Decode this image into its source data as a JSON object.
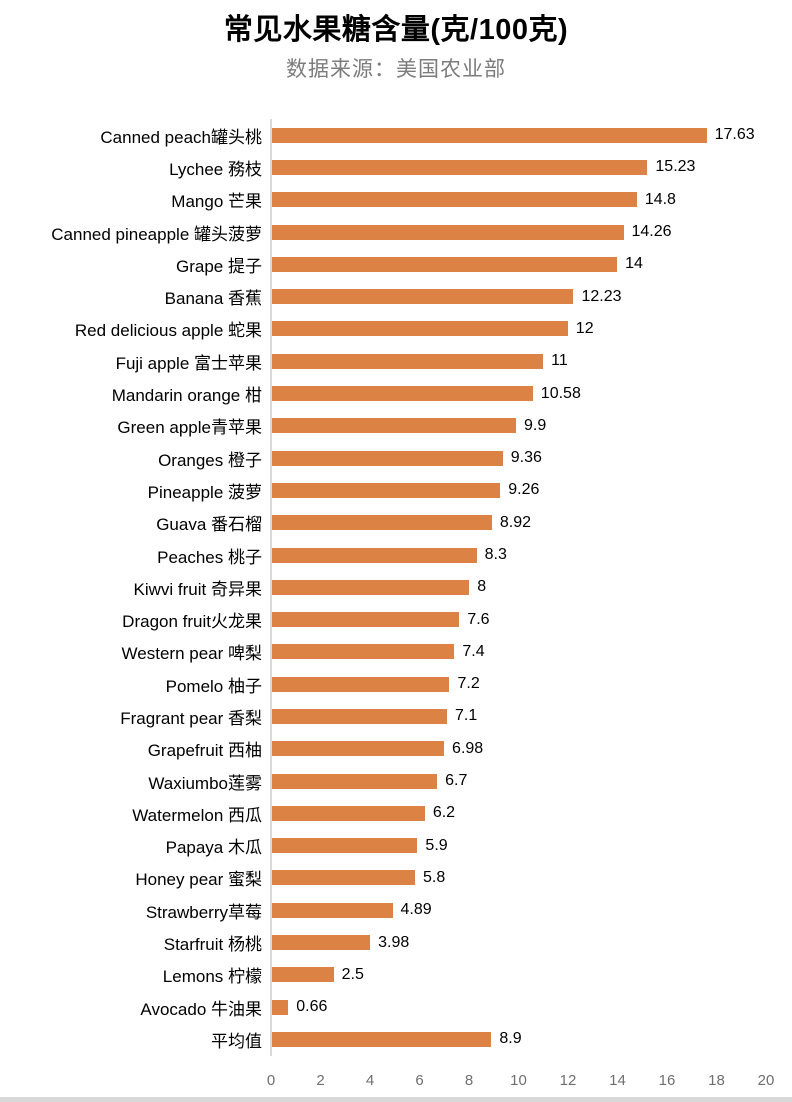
{
  "header": {
    "title": "常见水果糖含量(克/100克)",
    "subtitle": "数据来源：美国农业部"
  },
  "colors": {
    "bar": "#dc8245",
    "axis_line": "#d9d9d9",
    "subtitle_text": "#7c7c7c",
    "tick_text": "#6f6f6f",
    "label_text": "#000000"
  },
  "chart_data": {
    "type": "bar",
    "orientation": "horizontal",
    "title": "常见水果糖含量(克/100克)",
    "subtitle": "数据来源：美国农业部",
    "xlabel": "",
    "ylabel": "",
    "xlim": [
      0,
      20
    ],
    "x_ticks": [
      0,
      2,
      4,
      6,
      8,
      10,
      12,
      14,
      16,
      18,
      20
    ],
    "grid": false,
    "legend": false,
    "categories": [
      "Canned peach罐头桃",
      "Lychee 務枝",
      "Mango 芒果",
      "Canned pineapple 罐头菠萝",
      "Grape 提子",
      "Banana 香蕉",
      "Red delicious apple 蛇果",
      "Fuji apple 富士苹果",
      "Mandarin orange 柑",
      "Green apple青苹果",
      "Oranges 橙子",
      "Pineapple 菠萝",
      "Guava 番石榴",
      "Peaches 桃子",
      "Kiwvi fruit 奇异果",
      "Dragon fruit火龙果",
      "Western pear 啤梨",
      "Pomelo 柚子",
      "Fragrant pear 香梨",
      "Grapefruit 西柚",
      "Waxiumbo莲雾",
      "Watermelon 西瓜",
      "Papaya 木瓜",
      "Honey pear 蜜梨",
      "Strawberry草莓",
      "Starfruit 杨桃",
      "Lemons 柠檬",
      "Avocado 牛油果",
      "平均值"
    ],
    "values": [
      17.63,
      15.23,
      14.8,
      14.26,
      14,
      12.23,
      12,
      11,
      10.58,
      9.9,
      9.36,
      9.26,
      8.92,
      8.3,
      8,
      7.6,
      7.4,
      7.2,
      7.1,
      6.98,
      6.7,
      6.2,
      5.9,
      5.8,
      4.89,
      3.98,
      2.5,
      0.66,
      8.9
    ],
    "value_labels": [
      "17.63",
      "15.23",
      "14.8",
      "14.26",
      "14",
      "12.23",
      "12",
      "11",
      "10.58",
      "9.9",
      "9.36",
      "9.26",
      "8.92",
      "8.3",
      "8",
      "7.6",
      "7.4",
      "7.2",
      "7.1",
      "6.98",
      "6.7",
      "6.2",
      "5.9",
      "5.8",
      "4.89",
      "3.98",
      "2.5",
      "0.66",
      "8.9"
    ]
  }
}
